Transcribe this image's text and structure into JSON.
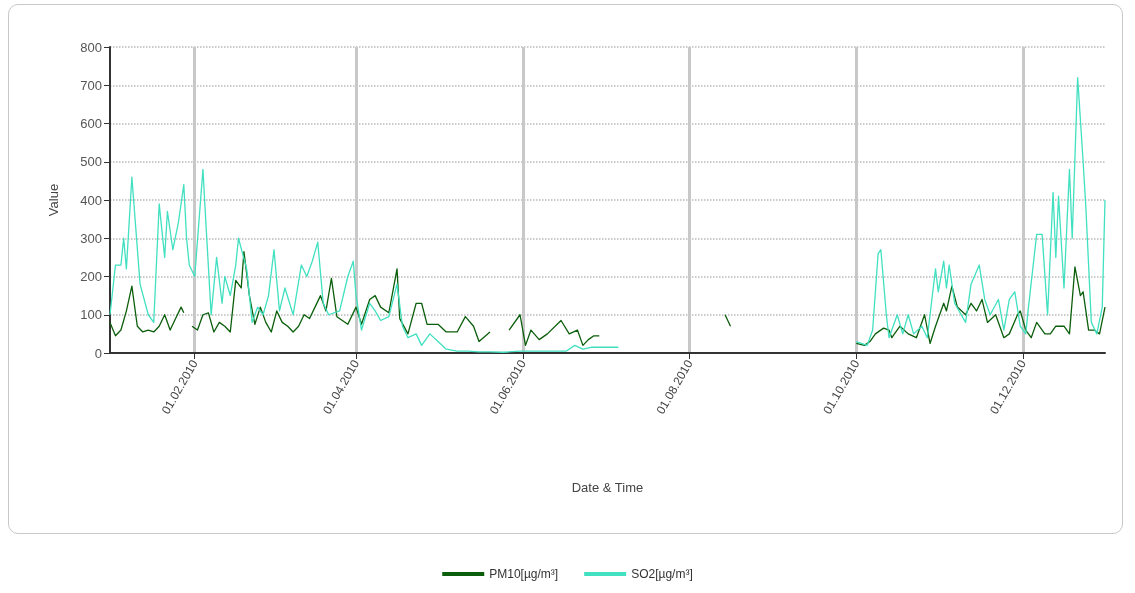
{
  "chart_data": {
    "type": "line",
    "xlabel": "Date & Time",
    "ylabel": "Value",
    "xlim": [
      "2010-01-01",
      "2010-12-31"
    ],
    "xticks": [
      {
        "value": "2010-02-01",
        "label": "01.02.2010"
      },
      {
        "value": "2010-04-01",
        "label": "01.04.2010"
      },
      {
        "value": "2010-06-01",
        "label": "01.06.2010"
      },
      {
        "value": "2010-08-01",
        "label": "01.08.2010"
      },
      {
        "value": "2010-10-01",
        "label": "01.10.2010"
      },
      {
        "value": "2010-12-01",
        "label": "01.12.2010"
      }
    ],
    "ylim": [
      0,
      800
    ],
    "yticks": [
      0,
      100,
      200,
      300,
      400,
      500,
      600,
      700,
      800
    ],
    "grid": true,
    "legend": "bottom",
    "marker": "none",
    "line_style": "solid",
    "series": [
      {
        "name": "PM10[µg/m³]",
        "color": "#0b5e0b",
        "x": [
          "2010-01-01",
          "2010-01-03",
          "2010-01-05",
          "2010-01-07",
          "2010-01-09",
          "2010-01-11",
          "2010-01-13",
          "2010-01-15",
          "2010-01-17",
          "2010-01-19",
          "2010-01-21",
          "2010-01-23",
          "2010-01-25",
          "2010-01-27",
          "2010-01-28",
          "2010-01-29",
          "2010-01-31",
          "2010-02-02",
          "2010-02-04",
          "2010-02-06",
          "2010-02-08",
          "2010-02-10",
          "2010-02-12",
          "2010-02-14",
          "2010-02-16",
          "2010-02-18",
          "2010-02-19",
          "2010-02-21",
          "2010-02-23",
          "2010-02-25",
          "2010-02-27",
          "2010-03-01",
          "2010-03-03",
          "2010-03-05",
          "2010-03-07",
          "2010-03-09",
          "2010-03-11",
          "2010-03-13",
          "2010-03-15",
          "2010-03-17",
          "2010-03-19",
          "2010-03-21",
          "2010-03-23",
          "2010-03-25",
          "2010-03-27",
          "2010-03-29",
          "2010-04-01",
          "2010-04-03",
          "2010-04-06",
          "2010-04-08",
          "2010-04-10",
          "2010-04-13",
          "2010-04-16",
          "2010-04-17",
          "2010-04-20",
          "2010-04-23",
          "2010-04-25",
          "2010-04-27",
          "2010-05-01",
          "2010-05-04",
          "2010-05-08",
          "2010-05-11",
          "2010-05-14",
          "2010-05-16",
          "2010-05-20",
          "2010-05-23",
          "2010-05-27",
          "2010-05-31",
          "2010-06-02",
          "2010-06-04",
          "2010-06-07",
          "2010-06-10",
          "2010-06-15",
          "2010-06-18",
          "2010-06-21",
          "2010-06-23",
          "2010-06-25",
          "2010-06-27",
          "2010-06-29",
          "2010-07-15",
          "2010-08-14",
          "2010-08-16",
          "2010-09-15",
          "2010-10-01",
          "2010-10-04",
          "2010-10-06",
          "2010-10-08",
          "2010-10-11",
          "2010-10-13",
          "2010-10-14",
          "2010-10-17",
          "2010-10-20",
          "2010-10-23",
          "2010-10-26",
          "2010-10-28",
          "2010-10-30",
          "2010-11-02",
          "2010-11-03",
          "2010-11-05",
          "2010-11-07",
          "2010-11-10",
          "2010-11-12",
          "2010-11-14",
          "2010-11-16",
          "2010-11-18",
          "2010-11-21",
          "2010-11-24",
          "2010-11-26",
          "2010-11-29",
          "2010-11-30",
          "2010-12-02",
          "2010-12-04",
          "2010-12-06",
          "2010-12-09",
          "2010-12-11",
          "2010-12-13",
          "2010-12-16",
          "2010-12-18",
          "2010-12-20",
          "2010-12-22",
          "2010-12-23",
          "2010-12-25",
          "2010-12-27",
          "2010-12-29",
          "2010-12-31"
        ],
        "values": [
          80,
          45,
          60,
          110,
          175,
          70,
          55,
          60,
          55,
          70,
          100,
          60,
          90,
          120,
          105,
          null,
          70,
          60,
          100,
          105,
          55,
          80,
          70,
          55,
          190,
          170,
          265,
          150,
          75,
          120,
          80,
          55,
          110,
          80,
          70,
          55,
          70,
          100,
          90,
          120,
          150,
          110,
          195,
          95,
          85,
          75,
          120,
          75,
          140,
          150,
          120,
          105,
          220,
          90,
          50,
          130,
          130,
          75,
          75,
          55,
          55,
          95,
          70,
          30,
          55,
          null,
          60,
          100,
          20,
          60,
          35,
          50,
          85,
          50,
          60,
          20,
          35,
          45,
          45,
          null,
          100,
          70,
          null,
          25,
          20,
          30,
          50,
          65,
          60,
          40,
          70,
          50,
          40,
          100,
          25,
          70,
          130,
          110,
          175,
          120,
          100,
          130,
          110,
          140,
          80,
          100,
          40,
          50,
          100,
          110,
          60,
          40,
          80,
          50,
          50,
          70,
          70,
          50,
          225,
          150,
          160,
          60,
          60,
          50,
          120
        ]
      },
      {
        "name": "SO2[µg/m³]",
        "color": "#40e0c0",
        "x": [
          "2010-01-01",
          "2010-01-03",
          "2010-01-05",
          "2010-01-06",
          "2010-01-07",
          "2010-01-09",
          "2010-01-12",
          "2010-01-15",
          "2010-01-17",
          "2010-01-19",
          "2010-01-21",
          "2010-01-22",
          "2010-01-24",
          "2010-01-26",
          "2010-01-28",
          "2010-01-29",
          "2010-01-30",
          "2010-02-01",
          "2010-02-04",
          "2010-02-05",
          "2010-02-07",
          "2010-02-09",
          "2010-02-11",
          "2010-02-12",
          "2010-02-14",
          "2010-02-16",
          "2010-02-17",
          "2010-02-20",
          "2010-02-22",
          "2010-02-24",
          "2010-02-26",
          "2010-02-28",
          "2010-03-02",
          "2010-03-04",
          "2010-03-06",
          "2010-03-09",
          "2010-03-12",
          "2010-03-14",
          "2010-03-16",
          "2010-03-18",
          "2010-03-20",
          "2010-03-22",
          "2010-03-26",
          "2010-03-29",
          "2010-03-31",
          "2010-04-01",
          "2010-04-03",
          "2010-04-06",
          "2010-04-08",
          "2010-04-10",
          "2010-04-13",
          "2010-04-16",
          "2010-04-18",
          "2010-04-20",
          "2010-04-23",
          "2010-04-25",
          "2010-04-28",
          "2010-05-01",
          "2010-05-04",
          "2010-05-08",
          "2010-05-12",
          "2010-05-16",
          "2010-05-20",
          "2010-05-25",
          "2010-05-31",
          "2010-06-05",
          "2010-06-10",
          "2010-06-17",
          "2010-06-20",
          "2010-06-23",
          "2010-06-26",
          "2010-06-30",
          "2010-07-06",
          "2010-07-20",
          "2010-10-01",
          "2010-10-05",
          "2010-10-07",
          "2010-10-09",
          "2010-10-10",
          "2010-10-12",
          "2010-10-13",
          "2010-10-16",
          "2010-10-18",
          "2010-10-20",
          "2010-10-22",
          "2010-10-25",
          "2010-10-27",
          "2010-10-30",
          "2010-10-31",
          "2010-11-02",
          "2010-11-03",
          "2010-11-04",
          "2010-11-06",
          "2010-11-10",
          "2010-11-12",
          "2010-11-15",
          "2010-11-17",
          "2010-11-19",
          "2010-11-22",
          "2010-11-24",
          "2010-11-26",
          "2010-11-28",
          "2010-11-30",
          "2010-12-02",
          "2010-12-03",
          "2010-12-06",
          "2010-12-08",
          "2010-12-10",
          "2010-12-12",
          "2010-12-13",
          "2010-12-14",
          "2010-12-16",
          "2010-12-18",
          "2010-12-19",
          "2010-12-21",
          "2010-12-23",
          "2010-12-24",
          "2010-12-26",
          "2010-12-28",
          "2010-12-30",
          "2010-12-31"
        ],
        "values": [
          100,
          230,
          230,
          300,
          220,
          460,
          180,
          100,
          80,
          390,
          250,
          370,
          270,
          340,
          440,
          300,
          230,
          200,
          480,
          350,
          100,
          250,
          130,
          200,
          150,
          230,
          300,
          220,
          80,
          120,
          100,
          150,
          270,
          110,
          170,
          100,
          230,
          200,
          240,
          290,
          130,
          100,
          110,
          200,
          240,
          150,
          60,
          130,
          110,
          85,
          95,
          180,
          70,
          40,
          50,
          20,
          50,
          30,
          10,
          5,
          5,
          3,
          3,
          2,
          5,
          5,
          5,
          5,
          20,
          10,
          15,
          15,
          15,
          null,
          30,
          20,
          60,
          260,
          270,
          100,
          40,
          100,
          50,
          100,
          50,
          70,
          40,
          220,
          160,
          240,
          170,
          230,
          130,
          80,
          180,
          230,
          140,
          100,
          140,
          60,
          140,
          160,
          70,
          50,
          120,
          310,
          310,
          100,
          420,
          250,
          410,
          170,
          480,
          300,
          720,
          500,
          380,
          80,
          50,
          120,
          400
        ]
      }
    ]
  }
}
